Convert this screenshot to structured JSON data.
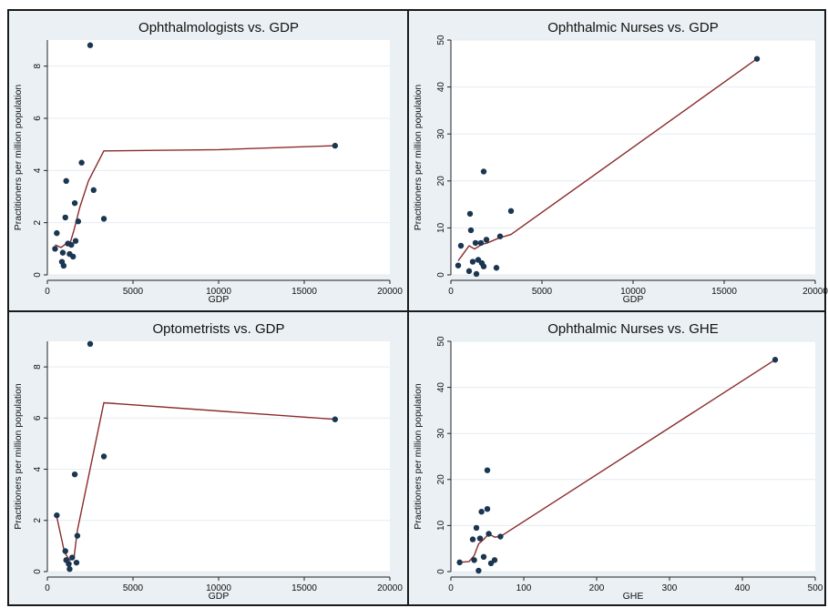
{
  "chart_data": [
    {
      "type": "scatter",
      "title": "Ophthalmologists vs. GDP",
      "xlabel": "GDP",
      "ylabel": "Practitioners per million population",
      "xlim": [
        0,
        20000
      ],
      "ylim": [
        0,
        9
      ],
      "xticks": [
        0,
        5000,
        10000,
        15000,
        20000
      ],
      "yticks": [
        0,
        2,
        4,
        6,
        8
      ],
      "points": [
        {
          "x": 450,
          "y": 1.0
        },
        {
          "x": 550,
          "y": 1.6
        },
        {
          "x": 850,
          "y": 0.5
        },
        {
          "x": 900,
          "y": 0.85
        },
        {
          "x": 950,
          "y": 0.35
        },
        {
          "x": 1050,
          "y": 2.2
        },
        {
          "x": 1100,
          "y": 3.6
        },
        {
          "x": 1200,
          "y": 1.2
        },
        {
          "x": 1300,
          "y": 0.8
        },
        {
          "x": 1400,
          "y": 1.15
        },
        {
          "x": 1500,
          "y": 0.7
        },
        {
          "x": 1600,
          "y": 2.75
        },
        {
          "x": 1650,
          "y": 1.3
        },
        {
          "x": 1800,
          "y": 2.05
        },
        {
          "x": 2000,
          "y": 4.3
        },
        {
          "x": 2500,
          "y": 8.8
        },
        {
          "x": 2700,
          "y": 3.25
        },
        {
          "x": 3300,
          "y": 2.15
        },
        {
          "x": 16800,
          "y": 4.95
        }
      ],
      "fit_line": [
        {
          "x": 450,
          "y": 1.15
        },
        {
          "x": 800,
          "y": 1.05
        },
        {
          "x": 1100,
          "y": 1.2
        },
        {
          "x": 1300,
          "y": 1.15
        },
        {
          "x": 1550,
          "y": 1.7
        },
        {
          "x": 1900,
          "y": 2.6
        },
        {
          "x": 2400,
          "y": 3.6
        },
        {
          "x": 3300,
          "y": 4.75
        },
        {
          "x": 10000,
          "y": 4.8
        },
        {
          "x": 16800,
          "y": 4.95
        }
      ]
    },
    {
      "type": "scatter",
      "title": "Ophthalmic Nurses vs. GDP",
      "xlabel": "GDP",
      "ylabel": "Practitioners per million population",
      "xlim": [
        0,
        20000
      ],
      "ylim": [
        0,
        50
      ],
      "xticks": [
        0,
        5000,
        10000,
        15000,
        20000
      ],
      "yticks": [
        0,
        10,
        20,
        30,
        40,
        50
      ],
      "points": [
        {
          "x": 400,
          "y": 2.0
        },
        {
          "x": 550,
          "y": 6.2
        },
        {
          "x": 1000,
          "y": 0.8
        },
        {
          "x": 1050,
          "y": 13.0
        },
        {
          "x": 1100,
          "y": 9.5
        },
        {
          "x": 1200,
          "y": 2.8
        },
        {
          "x": 1350,
          "y": 6.8
        },
        {
          "x": 1400,
          "y": 0.2
        },
        {
          "x": 1500,
          "y": 3.2
        },
        {
          "x": 1650,
          "y": 6.8
        },
        {
          "x": 1700,
          "y": 2.5
        },
        {
          "x": 1800,
          "y": 1.8
        },
        {
          "x": 1800,
          "y": 22.0
        },
        {
          "x": 1950,
          "y": 7.5
        },
        {
          "x": 2500,
          "y": 1.5
        },
        {
          "x": 2700,
          "y": 8.2
        },
        {
          "x": 3300,
          "y": 13.6
        },
        {
          "x": 16800,
          "y": 46.0
        }
      ],
      "fit_line": [
        {
          "x": 400,
          "y": 3.0
        },
        {
          "x": 1000,
          "y": 6.2
        },
        {
          "x": 1300,
          "y": 5.5
        },
        {
          "x": 1700,
          "y": 6.5
        },
        {
          "x": 2000,
          "y": 6.8
        },
        {
          "x": 2600,
          "y": 7.8
        },
        {
          "x": 3300,
          "y": 8.6
        },
        {
          "x": 16800,
          "y": 46.0
        }
      ]
    },
    {
      "type": "scatter",
      "title": "Optometrists vs. GDP",
      "xlabel": "GDP",
      "ylabel": "Practitioners per million population",
      "xlim": [
        0,
        20000
      ],
      "ylim": [
        0,
        9
      ],
      "xticks": [
        0,
        5000,
        10000,
        15000,
        20000
      ],
      "yticks": [
        0,
        2,
        4,
        6,
        8
      ],
      "points": [
        {
          "x": 550,
          "y": 2.2
        },
        {
          "x": 1050,
          "y": 0.8
        },
        {
          "x": 1100,
          "y": 0.45
        },
        {
          "x": 1250,
          "y": 0.3
        },
        {
          "x": 1300,
          "y": 0.1
        },
        {
          "x": 1450,
          "y": 0.55
        },
        {
          "x": 1600,
          "y": 3.8
        },
        {
          "x": 1700,
          "y": 0.35
        },
        {
          "x": 1750,
          "y": 1.4
        },
        {
          "x": 2500,
          "y": 8.9
        },
        {
          "x": 3300,
          "y": 4.5
        },
        {
          "x": 16800,
          "y": 5.95
        }
      ],
      "fit_line": [
        {
          "x": 550,
          "y": 2.15
        },
        {
          "x": 1000,
          "y": 0.75
        },
        {
          "x": 1300,
          "y": 0.45
        },
        {
          "x": 1550,
          "y": 0.5
        },
        {
          "x": 1750,
          "y": 1.6
        },
        {
          "x": 3300,
          "y": 6.6
        },
        {
          "x": 16800,
          "y": 5.95
        }
      ]
    },
    {
      "type": "scatter",
      "title": "Ophthalmic Nurses vs. GHE",
      "xlabel": "GHE",
      "ylabel": "Practitioners per million population",
      "xlim": [
        0,
        500
      ],
      "ylim": [
        0,
        50
      ],
      "xticks": [
        0,
        100,
        200,
        300,
        400,
        500
      ],
      "yticks": [
        0,
        10,
        20,
        30,
        40,
        50
      ],
      "points": [
        {
          "x": 12,
          "y": 2.0
        },
        {
          "x": 30,
          "y": 7.0
        },
        {
          "x": 32,
          "y": 2.5
        },
        {
          "x": 35,
          "y": 9.5
        },
        {
          "x": 38,
          "y": 0.2
        },
        {
          "x": 40,
          "y": 7.2
        },
        {
          "x": 42,
          "y": 13.0
        },
        {
          "x": 45,
          "y": 3.2
        },
        {
          "x": 50,
          "y": 22.0
        },
        {
          "x": 50,
          "y": 13.6
        },
        {
          "x": 52,
          "y": 8.2
        },
        {
          "x": 55,
          "y": 1.8
        },
        {
          "x": 60,
          "y": 2.5
        },
        {
          "x": 68,
          "y": 7.6
        },
        {
          "x": 445,
          "y": 46.0
        }
      ],
      "fit_line": [
        {
          "x": 12,
          "y": 2.0
        },
        {
          "x": 25,
          "y": 2.2
        },
        {
          "x": 32,
          "y": 3.5
        },
        {
          "x": 38,
          "y": 6.0
        },
        {
          "x": 45,
          "y": 7.0
        },
        {
          "x": 52,
          "y": 8.2
        },
        {
          "x": 60,
          "y": 7.5
        },
        {
          "x": 68,
          "y": 7.6
        },
        {
          "x": 445,
          "y": 46.0
        }
      ]
    }
  ],
  "colors": {
    "panel_background": "#eaf0f4",
    "plot_background": "#ffffff",
    "gridline": "#e4ecf2",
    "marker": "#1a3650",
    "fit_line": "#8b2a2a",
    "axis": "#222222",
    "border": "#1a1a1a"
  }
}
